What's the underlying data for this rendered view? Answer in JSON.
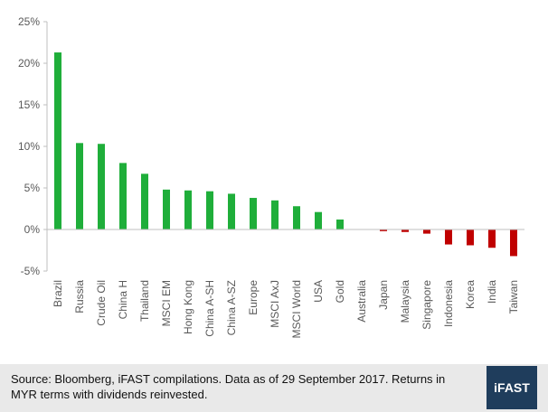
{
  "chart_data": {
    "type": "bar",
    "title": "",
    "xlabel": "",
    "ylabel": "",
    "ylim": [
      -5,
      25
    ],
    "yticks": [
      -5,
      0,
      5,
      10,
      15,
      20,
      25
    ],
    "ytick_labels": [
      "-5%",
      "0%",
      "5%",
      "10%",
      "15%",
      "20%",
      "25%"
    ],
    "y_unit": "%",
    "categories": [
      "Brazil",
      "Russia",
      "Crude Oil",
      "China H",
      "Thailand",
      "MSCI EM",
      "Hong Kong",
      "China A-SH",
      "China A-SZ",
      "Europe",
      "MSCI AxJ",
      "MSCI World",
      "USA",
      "Gold",
      "Australia",
      "Japan",
      "Malaysia",
      "Singapore",
      "Indonesia",
      "Korea",
      "India",
      "Taiwan"
    ],
    "values": [
      21.3,
      10.4,
      10.3,
      8.0,
      6.7,
      4.8,
      4.7,
      4.6,
      4.3,
      3.8,
      3.5,
      2.8,
      2.1,
      1.2,
      0.0,
      -0.2,
      -0.3,
      -0.5,
      -1.8,
      -1.9,
      -2.2,
      -3.2
    ],
    "grid": false,
    "legend": "none",
    "colors": {
      "positive": "#1fae3a",
      "negative": "#c00000",
      "axis": "#bfbfbf",
      "text": "#595959"
    }
  },
  "footer": {
    "source": "Source: Bloomberg, iFAST compilations. Data as of 29 September 2017. Returns in MYR terms with dividends reinvested.",
    "logo": "iFAST"
  }
}
